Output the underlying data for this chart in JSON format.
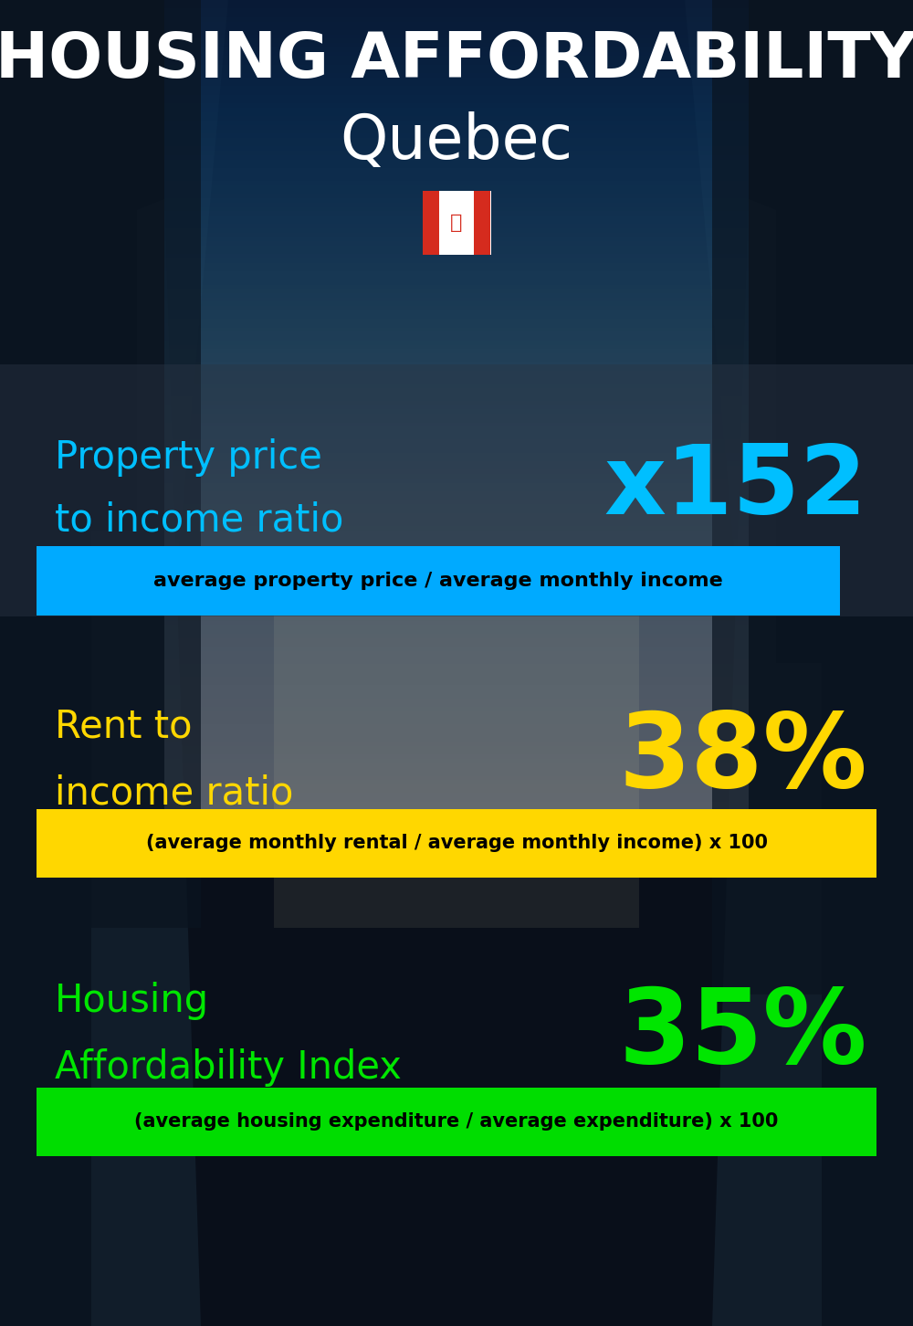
{
  "title_line1": "HOUSING AFFORDABILITY",
  "title_line2": "Quebec",
  "section1_label_line1": "Property price",
  "section1_label_line2": "to income ratio",
  "section1_value": "x152",
  "section1_sublabel": "average property price / average monthly income",
  "section1_label_color": "#00bfff",
  "section1_value_color": "#00bfff",
  "section1_sublabel_bg": "#00aaff",
  "section2_label_line1": "Rent to",
  "section2_label_line2": "income ratio",
  "section2_value": "38%",
  "section2_sublabel": "(average monthly rental / average monthly income) x 100",
  "section2_label_color": "#FFD700",
  "section2_value_color": "#FFD700",
  "section2_sublabel_bg": "#FFD700",
  "section3_label_line1": "Housing",
  "section3_label_line2": "Affordability Index",
  "section3_value": "35%",
  "section3_sublabel": "(average housing expenditure / average expenditure) x 100",
  "section3_label_color": "#00e600",
  "section3_value_color": "#00e600",
  "section3_sublabel_bg": "#00dd00",
  "bg_color": "#080f18",
  "title_color": "#ffffff",
  "sublabel_text_color": "#000000",
  "fig_width": 10.0,
  "fig_height": 14.52,
  "dpi": 100
}
